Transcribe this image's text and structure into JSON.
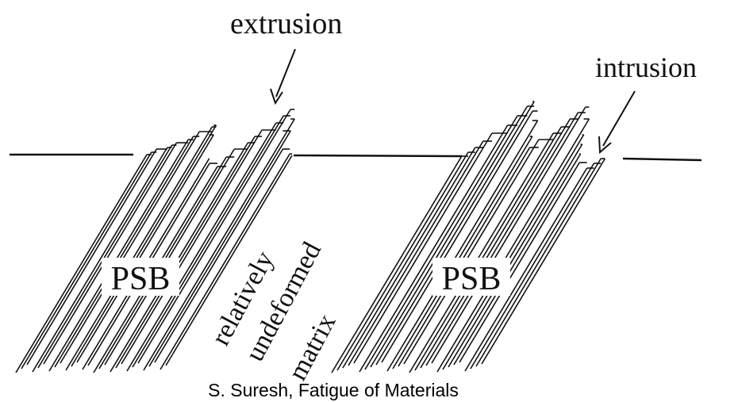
{
  "labels": {
    "extrusion": "extrusion",
    "intrusion": "intrusion"
  },
  "bands": [
    {
      "label": "PSB"
    },
    {
      "label": "PSB"
    }
  ],
  "matrix_label": [
    "relatively",
    "undeformed",
    "matrix"
  ],
  "caption": "S. Suresh, Fatigue of Materials"
}
